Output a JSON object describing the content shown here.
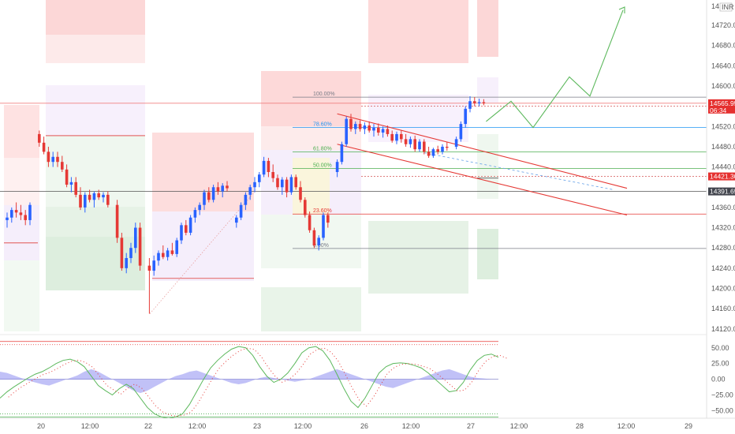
{
  "chart_data": {
    "type": "candlestick",
    "instrument_badge": "INR",
    "price_axis": {
      "ticks": [
        14720,
        14680,
        14640,
        14600,
        14520,
        14480,
        14440,
        14360,
        14320,
        14280,
        14240,
        14200,
        14160,
        14120
      ],
      "tick_labels": [
        "14720.00",
        "14680.00",
        "14640.00",
        "14600.00",
        "14520.00",
        "14480.00",
        "14440.00",
        "14360.00",
        "14320.00",
        "14280.00",
        "14240.00",
        "14200.00",
        "14160.00",
        "14120.00"
      ],
      "top_partial_label": "14",
      "range": [
        14115,
        14770
      ]
    },
    "price_tags": [
      {
        "value": 14565.95,
        "label": "14565.95",
        "sub": "06:34",
        "color": "#e5302f"
      },
      {
        "value": 14421.3,
        "label": "14421.30",
        "color": "#e5302f"
      },
      {
        "value": 14391.65,
        "label": "14391.65",
        "color": "#41444d"
      }
    ],
    "time_axis": {
      "labels": [
        "20",
        "12:00",
        "22",
        "12:00",
        "23",
        "12:00",
        "26",
        "12:00",
        "27",
        "12:00",
        "28",
        "12:00",
        "29"
      ],
      "bar_index": [
        2.5,
        14,
        25,
        36.5,
        42,
        54,
        60,
        71.5,
        82,
        93.5,
        105,
        116.5,
        128
      ]
    },
    "candles": [
      {
        "o": 14335,
        "h": 14350,
        "l": 14320,
        "c": 14340
      },
      {
        "o": 14340,
        "h": 14360,
        "l": 14330,
        "c": 14355
      },
      {
        "o": 14355,
        "h": 14370,
        "l": 14340,
        "c": 14350
      },
      {
        "o": 14350,
        "h": 14365,
        "l": 14335,
        "c": 14345
      },
      {
        "o": 14345,
        "h": 14355,
        "l": 14325,
        "c": 14335
      },
      {
        "o": 14335,
        "h": 14370,
        "l": 14325,
        "c": 14365
      },
      {
        "o": 14505,
        "h": 14512,
        "l": 14480,
        "c": 14488
      },
      {
        "o": 14488,
        "h": 14500,
        "l": 14465,
        "c": 14470
      },
      {
        "o": 14470,
        "h": 14480,
        "l": 14440,
        "c": 14450
      },
      {
        "o": 14450,
        "h": 14470,
        "l": 14440,
        "c": 14460
      },
      {
        "o": 14460,
        "h": 14470,
        "l": 14440,
        "c": 14450
      },
      {
        "o": 14450,
        "h": 14462,
        "l": 14430,
        "c": 14435
      },
      {
        "o": 14435,
        "h": 14445,
        "l": 14400,
        "c": 14405
      },
      {
        "o": 14405,
        "h": 14420,
        "l": 14390,
        "c": 14410
      },
      {
        "o": 14410,
        "h": 14420,
        "l": 14380,
        "c": 14385
      },
      {
        "o": 14385,
        "h": 14400,
        "l": 14355,
        "c": 14360
      },
      {
        "o": 14360,
        "h": 14390,
        "l": 14350,
        "c": 14385
      },
      {
        "o": 14385,
        "h": 14395,
        "l": 14370,
        "c": 14375
      },
      {
        "o": 14375,
        "h": 14392,
        "l": 14360,
        "c": 14388
      },
      {
        "o": 14388,
        "h": 14395,
        "l": 14375,
        "c": 14380
      },
      {
        "o": 14380,
        "h": 14390,
        "l": 14370,
        "c": 14385
      },
      {
        "o": 14385,
        "h": 14392,
        "l": 14360,
        "c": 14365
      },
      {
        "o": 14365,
        "h": 14375,
        "l": 14290,
        "c": 14300
      },
      {
        "o": 14300,
        "h": 14310,
        "l": 14235,
        "c": 14240
      },
      {
        "o": 14240,
        "h": 14270,
        "l": 14230,
        "c": 14260
      },
      {
        "o": 14260,
        "h": 14290,
        "l": 14250,
        "c": 14280
      },
      {
        "o": 14280,
        "h": 14330,
        "l": 14270,
        "c": 14320
      },
      {
        "o": 14320,
        "h": 14330,
        "l": 14235,
        "c": 14245
      },
      {
        "o": 14245,
        "h": 14260,
        "l": 14150,
        "c": 14235
      },
      {
        "o": 14235,
        "h": 14265,
        "l": 14225,
        "c": 14255
      },
      {
        "o": 14255,
        "h": 14275,
        "l": 14245,
        "c": 14270
      },
      {
        "o": 14270,
        "h": 14285,
        "l": 14258,
        "c": 14262
      },
      {
        "o": 14262,
        "h": 14280,
        "l": 14255,
        "c": 14275
      },
      {
        "o": 14275,
        "h": 14290,
        "l": 14265,
        "c": 14268
      },
      {
        "o": 14268,
        "h": 14300,
        "l": 14262,
        "c": 14295
      },
      {
        "o": 14295,
        "h": 14330,
        "l": 14288,
        "c": 14325
      },
      {
        "o": 14325,
        "h": 14335,
        "l": 14305,
        "c": 14310
      },
      {
        "o": 14310,
        "h": 14345,
        "l": 14305,
        "c": 14340
      },
      {
        "o": 14340,
        "h": 14360,
        "l": 14330,
        "c": 14355
      },
      {
        "o": 14355,
        "h": 14370,
        "l": 14345,
        "c": 14365
      },
      {
        "o": 14365,
        "h": 14395,
        "l": 14355,
        "c": 14390
      },
      {
        "o": 14390,
        "h": 14400,
        "l": 14370,
        "c": 14375
      },
      {
        "o": 14375,
        "h": 14405,
        "l": 14370,
        "c": 14400
      },
      {
        "o": 14400,
        "h": 14410,
        "l": 14385,
        "c": 14392
      },
      {
        "o": 14392,
        "h": 14408,
        "l": 14380,
        "c": 14403
      },
      {
        "o": 14403,
        "h": 14412,
        "l": 14392,
        "c": 14398
      },
      {
        "o": 14330,
        "h": 14345,
        "l": 14320,
        "c": 14340
      },
      {
        "o": 14340,
        "h": 14370,
        "l": 14335,
        "c": 14365
      },
      {
        "o": 14365,
        "h": 14390,
        "l": 14355,
        "c": 14385
      },
      {
        "o": 14385,
        "h": 14405,
        "l": 14375,
        "c": 14400
      },
      {
        "o": 14400,
        "h": 14420,
        "l": 14390,
        "c": 14410
      },
      {
        "o": 14410,
        "h": 14430,
        "l": 14400,
        "c": 14425
      },
      {
        "o": 14425,
        "h": 14460,
        "l": 14420,
        "c": 14452
      },
      {
        "o": 14452,
        "h": 14458,
        "l": 14420,
        "c": 14430
      },
      {
        "o": 14430,
        "h": 14445,
        "l": 14410,
        "c": 14418
      },
      {
        "o": 14418,
        "h": 14425,
        "l": 14395,
        "c": 14400
      },
      {
        "o": 14400,
        "h": 14420,
        "l": 14385,
        "c": 14415
      },
      {
        "o": 14415,
        "h": 14420,
        "l": 14380,
        "c": 14390
      },
      {
        "o": 14390,
        "h": 14425,
        "l": 14385,
        "c": 14420
      },
      {
        "o": 14420,
        "h": 14425,
        "l": 14395,
        "c": 14400
      },
      {
        "o": 14400,
        "h": 14412,
        "l": 14370,
        "c": 14375
      },
      {
        "o": 14375,
        "h": 14380,
        "l": 14340,
        "c": 14345
      },
      {
        "o": 14345,
        "h": 14352,
        "l": 14310,
        "c": 14315
      },
      {
        "o": 14315,
        "h": 14320,
        "l": 14280,
        "c": 14285
      },
      {
        "o": 14285,
        "h": 14305,
        "l": 14275,
        "c": 14300
      },
      {
        "o": 14300,
        "h": 14350,
        "l": 14295,
        "c": 14345
      },
      {
        "o": 14345,
        "h": 14350,
        "l": 14320,
        "c": 14330
      },
      {
        "o": 14430,
        "h": 14455,
        "l": 14420,
        "c": 14450
      },
      {
        "o": 14450,
        "h": 14490,
        "l": 14445,
        "c": 14485
      },
      {
        "o": 14485,
        "h": 14540,
        "l": 14480,
        "c": 14535
      },
      {
        "o": 14535,
        "h": 14545,
        "l": 14510,
        "c": 14515
      },
      {
        "o": 14515,
        "h": 14530,
        "l": 14505,
        "c": 14525
      },
      {
        "o": 14525,
        "h": 14532,
        "l": 14510,
        "c": 14515
      },
      {
        "o": 14515,
        "h": 14528,
        "l": 14505,
        "c": 14522
      },
      {
        "o": 14522,
        "h": 14530,
        "l": 14508,
        "c": 14512
      },
      {
        "o": 14512,
        "h": 14525,
        "l": 14500,
        "c": 14518
      },
      {
        "o": 14518,
        "h": 14526,
        "l": 14502,
        "c": 14508
      },
      {
        "o": 14508,
        "h": 14520,
        "l": 14498,
        "c": 14515
      },
      {
        "o": 14515,
        "h": 14522,
        "l": 14500,
        "c": 14505
      },
      {
        "o": 14505,
        "h": 14512,
        "l": 14488,
        "c": 14492
      },
      {
        "o": 14492,
        "h": 14510,
        "l": 14485,
        "c": 14505
      },
      {
        "o": 14505,
        "h": 14512,
        "l": 14488,
        "c": 14495
      },
      {
        "o": 14495,
        "h": 14505,
        "l": 14480,
        "c": 14485
      },
      {
        "o": 14485,
        "h": 14500,
        "l": 14478,
        "c": 14495
      },
      {
        "o": 14495,
        "h": 14502,
        "l": 14470,
        "c": 14475
      },
      {
        "o": 14475,
        "h": 14495,
        "l": 14470,
        "c": 14490
      },
      {
        "o": 14490,
        "h": 14495,
        "l": 14465,
        "c": 14470
      },
      {
        "o": 14470,
        "h": 14480,
        "l": 14458,
        "c": 14462
      },
      {
        "o": 14462,
        "h": 14478,
        "l": 14458,
        "c": 14475
      },
      {
        "o": 14475,
        "h": 14482,
        "l": 14465,
        "c": 14470
      },
      {
        "o": 14470,
        "h": 14485,
        "l": 14465,
        "c": 14480
      },
      {
        "o": 14480,
        "h": 14490,
        "l": 14472,
        "c": 14478
      },
      {
        "o": 14480,
        "h": 14500,
        "l": 14475,
        "c": 14495
      },
      {
        "o": 14495,
        "h": 14530,
        "l": 14490,
        "c": 14525
      },
      {
        "o": 14525,
        "h": 14560,
        "l": 14518,
        "c": 14555
      },
      {
        "o": 14555,
        "h": 14580,
        "l": 14548,
        "c": 14570
      },
      {
        "o": 14570,
        "h": 14578,
        "l": 14560,
        "c": 14566
      },
      {
        "o": 14566,
        "h": 14575,
        "l": 14560,
        "c": 14568
      },
      {
        "o": 14568,
        "h": 14574,
        "l": 14562,
        "c": 14566
      }
    ],
    "candle_gaps_after_index": [
      5,
      21,
      27,
      45,
      66,
      91
    ],
    "fibonacci": [
      {
        "label": "100.00%",
        "value": 14578,
        "color": "#787b86"
      },
      {
        "label": "78.60%",
        "value": 14518,
        "color": "#2196f3"
      },
      {
        "label": "61.80%",
        "value": 14470,
        "color": "#4caf50"
      },
      {
        "label": "50.00%",
        "value": 14437,
        "color": "#4caf50"
      },
      {
        "label": "23.60%",
        "value": 14347,
        "color": "#e53935"
      },
      {
        "label": "0.00%",
        "value": 14279,
        "color": "#787b86"
      }
    ],
    "oscillator": {
      "ticks": [
        50,
        25,
        0,
        -25,
        -50
      ],
      "tick_labels": [
        "50.00",
        "25.00",
        "0.00",
        "−25.00",
        "−50.00"
      ],
      "range": [
        -62,
        66
      ],
      "upper_band": 60,
      "lower_band": -60,
      "upper_dotted": 55,
      "lower_dotted": -55,
      "line": [
        -30,
        -20,
        -12,
        -5,
        2,
        8,
        12,
        18,
        25,
        30,
        32,
        28,
        20,
        5,
        -10,
        -18,
        -25,
        -15,
        -8,
        -15,
        -30,
        -45,
        -55,
        -60,
        -62,
        -60,
        -55,
        -40,
        -20,
        0,
        18,
        30,
        40,
        48,
        52,
        50,
        38,
        20,
        5,
        -5,
        0,
        10,
        25,
        42,
        50,
        52,
        45,
        30,
        8,
        -15,
        -35,
        -45,
        -30,
        -10,
        10,
        20,
        25,
        26,
        25,
        22,
        18,
        10,
        0,
        -10,
        -20,
        -18,
        -5,
        15,
        30,
        38,
        40,
        35
      ],
      "histogram": [
        12,
        10,
        6,
        2,
        -2,
        -5,
        -8,
        -10,
        -6,
        -2,
        2,
        6,
        12,
        16,
        12,
        6,
        0,
        -6,
        -12,
        -18,
        -22,
        -18,
        -12,
        -6,
        0,
        5,
        8,
        12,
        14,
        10,
        6,
        2,
        -2,
        -6,
        -8,
        -6,
        -2,
        2,
        4,
        2,
        0,
        -2,
        -4,
        -2,
        0,
        4,
        8,
        12,
        16,
        12,
        8,
        4,
        0,
        -4,
        -8,
        -12,
        -14,
        -10,
        -6,
        -2,
        2,
        6,
        10,
        14,
        16,
        12,
        8,
        4,
        2,
        1,
        0,
        0
      ]
    }
  }
}
